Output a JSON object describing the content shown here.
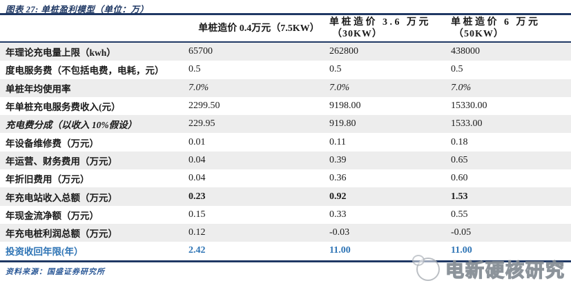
{
  "title": "图表 27: 单桩盈利模型（单位：万）",
  "colors": {
    "navy_rule": "#1f3864",
    "title_text": "#1f3864",
    "stripe_gray": "#ededed",
    "payback_blue": "#2e74b5",
    "source_blue": "#2d5a98",
    "body_text": "#1a1a1a"
  },
  "table": {
    "columns": [
      {
        "line1": "单桩造价 0.4万元（7.5KW）",
        "line2": ""
      },
      {
        "line1": "单桩造价 3.6 万元",
        "line2": "（30KW）"
      },
      {
        "line1": "单桩造价 6 万元",
        "line2": "（50KW）"
      }
    ],
    "rows": [
      {
        "label": "年理论充电量上限（kwh）",
        "values": [
          "65700",
          "262800",
          "438000"
        ]
      },
      {
        "label": "度电服务费（不包括电费，电耗，元）",
        "values": [
          "0.5",
          "0.5",
          "0.5"
        ]
      },
      {
        "label": "单桩年均使用率",
        "values": [
          "7.0%",
          "7.0%",
          "7.0%"
        ]
      },
      {
        "label": "年单桩充电服务费收入(元）",
        "values": [
          "2299.50",
          "9198.00",
          "15330.00"
        ]
      },
      {
        "label": "充电费分成（以收入 10%假设）",
        "values": [
          "229.95",
          "919.80",
          "1533.00"
        ]
      },
      {
        "label": "年设备维修费（万元）",
        "values": [
          "0.01",
          "0.11",
          "0.18"
        ]
      },
      {
        "label": "年运营、财务费用（万元）",
        "values": [
          "0.04",
          "0.39",
          "0.65"
        ]
      },
      {
        "label": "年折旧费用（万元）",
        "values": [
          "0.04",
          "0.36",
          "0.60"
        ]
      },
      {
        "label": "年充电站收入总额（万元）",
        "values": [
          "0.23",
          "0.92",
          "1.53"
        ]
      },
      {
        "label": "年现金流净额（万元）",
        "values": [
          "0.15",
          "0.33",
          "0.55"
        ]
      },
      {
        "label": "年充电桩利润总额（万元）",
        "values": [
          "0.12",
          "-0.03",
          "-0.05"
        ]
      },
      {
        "label": "投资收回年限(年）",
        "values": [
          "2.42",
          "11.00",
          "11.00"
        ]
      }
    ]
  },
  "footer": {
    "source": "资料来源：国盛证券研究所"
  },
  "watermark": {
    "text": "电新硬核研究"
  }
}
